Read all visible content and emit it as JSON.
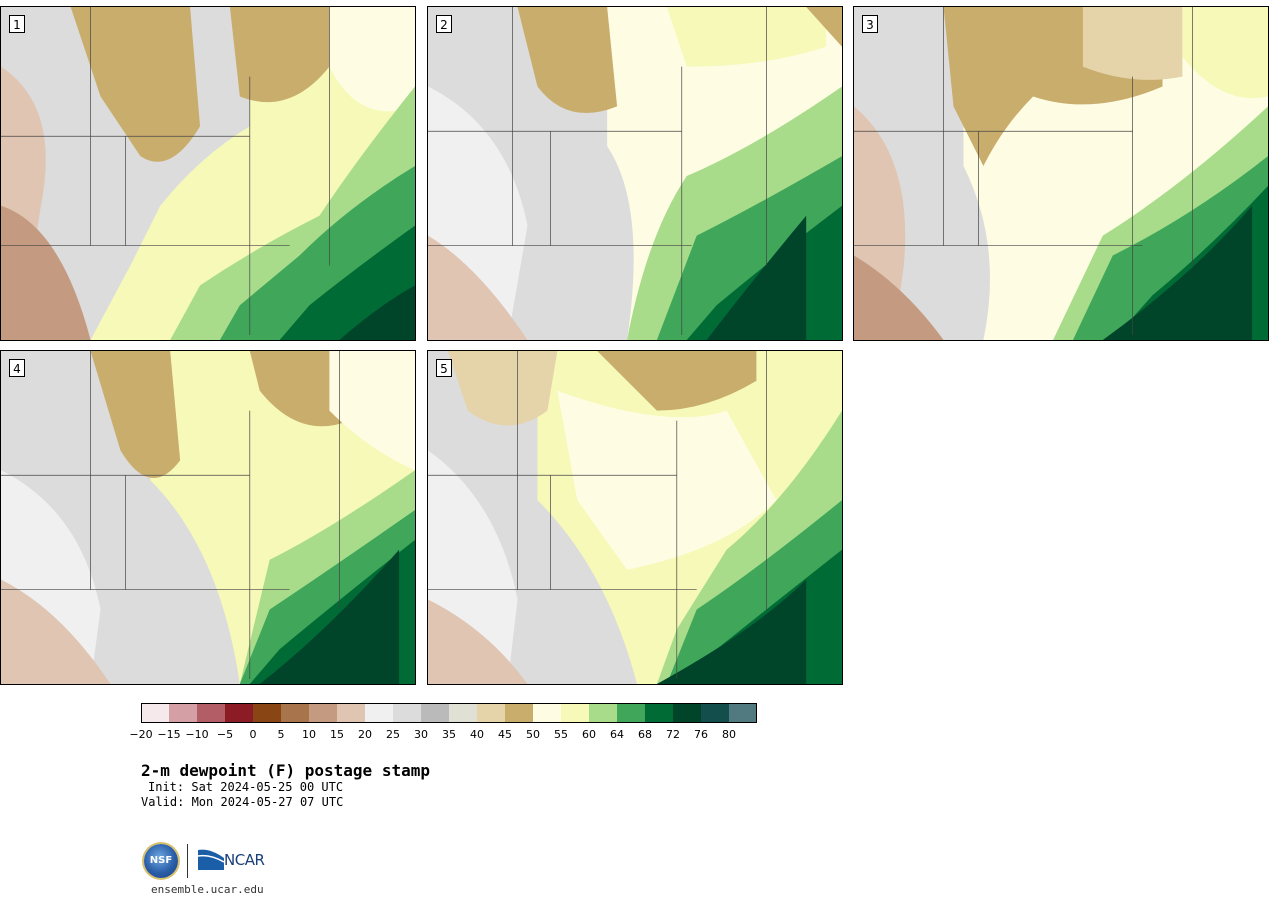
{
  "panels": [
    {
      "label": "1"
    },
    {
      "label": "2"
    },
    {
      "label": "3"
    },
    {
      "label": "4"
    },
    {
      "label": "5"
    }
  ],
  "colorbar": {
    "colors": [
      "#f6e9ec",
      "#d4a0a6",
      "#b35d66",
      "#8b1c25",
      "#8a4514",
      "#a8744b",
      "#c49a80",
      "#dfc5b2",
      "#f0f0f0",
      "#dcdcdc",
      "#bababa",
      "#e0e0d4",
      "#e5d4aa",
      "#c9ad6c",
      "#fefde4",
      "#f6f9b8",
      "#a8dc8a",
      "#3fa65a",
      "#006b34",
      "#00442a",
      "#144e4c",
      "#507a80"
    ],
    "ticks": [
      "−20",
      "−15",
      "−10",
      "−5",
      "0",
      "5",
      "10",
      "15",
      "20",
      "25",
      "30",
      "35",
      "40",
      "45",
      "50",
      "55",
      "60",
      "64",
      "68",
      "72",
      "76",
      "80"
    ]
  },
  "title": "2-m dewpoint (F) postage stamp",
  "init": "Init: Sat 2024-05-25 00 UTC",
  "valid": "Valid: Mon 2024-05-27 07 UTC",
  "logos": {
    "nsf_text": "NSF",
    "ncar_text": "NCAR"
  },
  "site": "ensemble.ucar.edu"
}
